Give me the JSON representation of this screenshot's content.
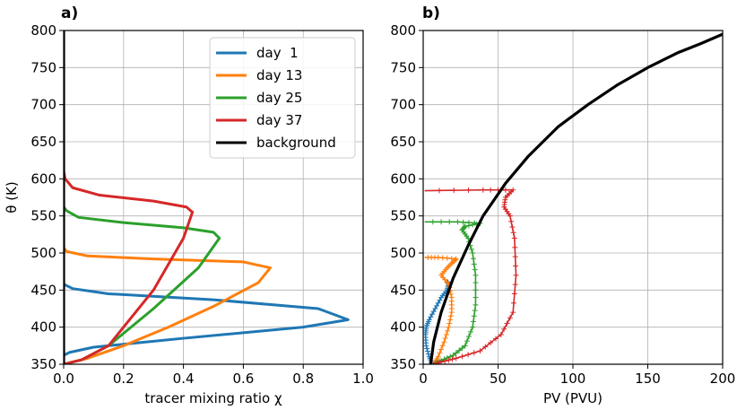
{
  "colors": {
    "day1": "#1f77b4",
    "day13": "#ff7f0e",
    "day25": "#2ca02c",
    "day37": "#d62728",
    "background": "#000000",
    "grid": "#b0b0b0"
  },
  "chart_data": [
    {
      "panel_label": "a)",
      "type": "line",
      "xlabel": "tracer mixing ratio χ",
      "ylabel": "θ (K)",
      "xlim": [
        0.0,
        1.0
      ],
      "ylim": [
        350,
        800
      ],
      "xticks": [
        "0.0",
        "0.2",
        "0.4",
        "0.6",
        "0.8",
        "1.0"
      ],
      "yticks": [
        "350",
        "400",
        "450",
        "500",
        "550",
        "600",
        "650",
        "700",
        "750",
        "800"
      ],
      "grid": true,
      "legend_position": "upper-right",
      "series": [
        {
          "name": "day  1",
          "color_key": "day1",
          "x": [
            0,
            0,
            0.02,
            0.1,
            0.4,
            0.8,
            0.95,
            0.85,
            0.5,
            0.15,
            0.03,
            0
          ],
          "y": [
            350,
            362,
            366,
            373,
            385,
            400,
            410,
            425,
            437,
            445,
            452,
            458
          ]
        },
        {
          "name": "day 13",
          "color_key": "day13",
          "x": [
            0,
            0.02,
            0.08,
            0.2,
            0.35,
            0.5,
            0.65,
            0.69,
            0.6,
            0.3,
            0.08,
            0.01,
            0
          ],
          "y": [
            350,
            352,
            358,
            375,
            400,
            428,
            460,
            480,
            488,
            492,
            496,
            502,
            507
          ]
        },
        {
          "name": "day 25",
          "color_key": "day25",
          "x": [
            0,
            0.02,
            0.06,
            0.15,
            0.3,
            0.45,
            0.52,
            0.5,
            0.4,
            0.2,
            0.05,
            0.01,
            0
          ],
          "y": [
            350,
            352,
            356,
            375,
            425,
            480,
            520,
            528,
            534,
            541,
            548,
            557,
            562
          ]
        },
        {
          "name": "day 37",
          "color_key": "day37",
          "x": [
            0,
            0.02,
            0.06,
            0.15,
            0.3,
            0.4,
            0.43,
            0.41,
            0.3,
            0.12,
            0.03,
            0.005,
            0
          ],
          "y": [
            350,
            352,
            356,
            375,
            450,
            520,
            555,
            562,
            570,
            578,
            588,
            600,
            610
          ]
        },
        {
          "name": "background",
          "color_key": "background",
          "x": [
            0,
            0
          ],
          "y": [
            350,
            800
          ]
        }
      ]
    },
    {
      "panel_label": "b)",
      "type": "line",
      "xlabel": "PV (PVU)",
      "ylabel": "",
      "xlim": [
        0,
        200
      ],
      "ylim": [
        350,
        800
      ],
      "xticks": [
        "0",
        "50",
        "100",
        "150",
        "200"
      ],
      "yticks": [
        "350",
        "400",
        "450",
        "500",
        "550",
        "600",
        "650",
        "700",
        "750",
        "800"
      ],
      "grid": true,
      "series": [
        {
          "name": "day 1",
          "color_key": "day1",
          "markers": true,
          "x": [
            6,
            4,
            2,
            1.5,
            2,
            4,
            8,
            12,
            16,
            17,
            16
          ],
          "y": [
            350,
            360,
            375,
            390,
            400,
            410,
            425,
            440,
            450,
            458,
            462
          ]
        },
        {
          "name": "day 13",
          "color_key": "day13",
          "markers": true,
          "x": [
            7,
            10,
            14,
            17,
            19,
            19,
            17,
            12,
            16,
            20,
            22,
            10,
            1
          ],
          "y": [
            350,
            360,
            380,
            400,
            420,
            440,
            458,
            470,
            480,
            488,
            492,
            494,
            494
          ]
        },
        {
          "name": "day 25",
          "color_key": "day25",
          "markers": true,
          "x": [
            7,
            12,
            20,
            28,
            33,
            35,
            35,
            33,
            30,
            26,
            28,
            38,
            23,
            1
          ],
          "y": [
            350,
            355,
            362,
            375,
            400,
            430,
            470,
            500,
            520,
            531,
            536,
            540,
            542,
            542
          ]
        },
        {
          "name": "day 37",
          "color_key": "day37",
          "markers": true,
          "x": [
            7,
            12,
            22,
            38,
            52,
            60,
            62,
            61,
            58,
            54,
            55,
            60,
            40,
            1
          ],
          "y": [
            350,
            353,
            358,
            368,
            390,
            420,
            470,
            520,
            550,
            562,
            575,
            585,
            585,
            584
          ]
        },
        {
          "name": "background",
          "color_key": "background",
          "markers": false,
          "x": [
            5,
            7,
            12,
            20,
            30,
            40,
            55,
            70,
            90,
            110,
            130,
            150,
            170,
            185,
            200
          ],
          "y": [
            350,
            380,
            420,
            466,
            510,
            550,
            594,
            630,
            670,
            700,
            727,
            750,
            770,
            782,
            795
          ]
        }
      ]
    }
  ]
}
